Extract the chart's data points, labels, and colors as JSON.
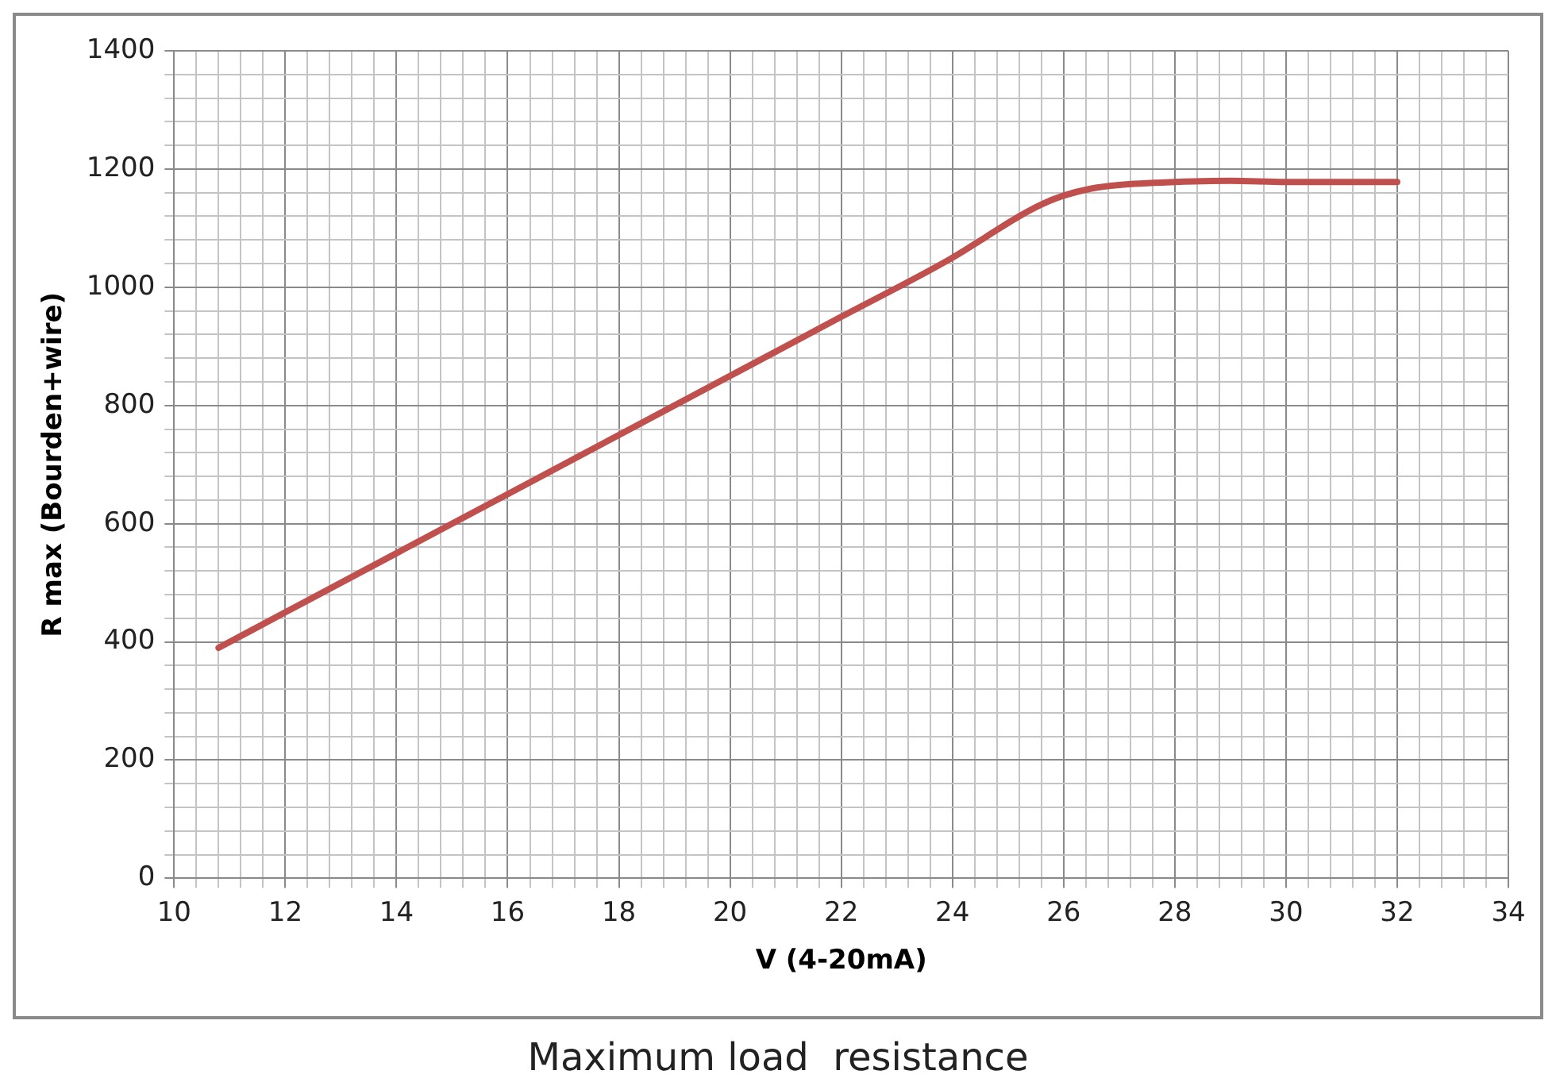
{
  "chart_data": {
    "type": "line",
    "xlabel": "V (4-20mA)",
    "ylabel": "R max (Bourden+wire)",
    "annotations": [
      "Maximum load  resistance"
    ],
    "x": [
      10.8,
      12,
      14,
      16,
      18,
      20,
      22,
      24,
      24.6,
      25.2,
      25.6,
      26,
      26.5,
      27,
      28,
      29,
      30,
      31,
      32
    ],
    "series": [
      {
        "color": "#c0504d",
        "values": [
          390,
          450,
          550,
          650,
          750,
          850,
          950,
          1050,
          1085,
          1120,
          1140,
          1155,
          1167,
          1173,
          1178,
          1180,
          1178,
          1178,
          1178
        ]
      }
    ],
    "xlim": [
      10,
      34
    ],
    "ylim": [
      0,
      1400
    ],
    "xticks": [
      10,
      {
        "value": 10.4,
        "label": null
      },
      {
        "value": 10.8,
        "label": null
      },
      {
        "value": 11.2,
        "label": null
      },
      {
        "value": 11.6,
        "label": null
      },
      12,
      {
        "value": 12.4,
        "label": null
      },
      {
        "value": 12.8,
        "label": null
      },
      {
        "value": 13.2,
        "label": null
      },
      {
        "value": 13.6,
        "label": null
      },
      14,
      {
        "value": 14.4,
        "label": null
      },
      {
        "value": 14.8,
        "label": null
      },
      {
        "value": 15.2,
        "label": null
      },
      {
        "value": 15.6,
        "label": null
      },
      16,
      {
        "value": 16.4,
        "label": null
      },
      {
        "value": 16.8,
        "label": null
      },
      {
        "value": 17.2,
        "label": null
      },
      {
        "value": 17.6,
        "label": null
      },
      18,
      {
        "value": 18.4,
        "label": null
      },
      {
        "value": 18.8,
        "label": null
      },
      {
        "value": 19.2,
        "label": null
      },
      {
        "value": 19.6,
        "label": null
      },
      20,
      {
        "value": 20.4,
        "label": null
      },
      {
        "value": 20.8,
        "label": null
      },
      {
        "value": 21.2,
        "label": null
      },
      {
        "value": 21.6,
        "label": null
      },
      22,
      {
        "value": 22.4,
        "label": null
      },
      {
        "value": 22.8,
        "label": null
      },
      {
        "value": 23.2,
        "label": null
      },
      {
        "value": 23.6,
        "label": null
      },
      24,
      {
        "value": 24.4,
        "label": null
      },
      {
        "value": 24.8,
        "label": null
      },
      {
        "value": 25.2,
        "label": null
      },
      {
        "value": 25.6,
        "label": null
      },
      26,
      {
        "value": 26.4,
        "label": null
      },
      {
        "value": 26.8,
        "label": null
      },
      {
        "value": 27.2,
        "label": null
      },
      {
        "value": 27.6,
        "label": null
      },
      28,
      {
        "value": 28.4,
        "label": null
      },
      {
        "value": 28.8,
        "label": null
      },
      {
        "value": 29.2,
        "label": null
      },
      {
        "value": 29.6,
        "label": null
      },
      30,
      {
        "value": 30.4,
        "label": null
      },
      {
        "value": 30.8,
        "label": null
      },
      {
        "value": 31.2,
        "label": null
      },
      {
        "value": 31.6,
        "label": null
      },
      32,
      {
        "value": 32.4,
        "label": null
      },
      {
        "value": 32.8,
        "label": null
      },
      {
        "value": 33.2,
        "label": null
      },
      {
        "value": 33.6,
        "label": null
      },
      34
    ],
    "yticks": [
      0,
      {
        "value": 40,
        "label": null
      },
      {
        "value": 80,
        "label": null
      },
      {
        "value": 120,
        "label": null
      },
      {
        "value": 160,
        "label": null
      },
      200,
      {
        "value": 240,
        "label": null
      },
      {
        "value": 280,
        "label": null
      },
      {
        "value": 320,
        "label": null
      },
      {
        "value": 360,
        "label": null
      },
      400,
      {
        "value": 440,
        "label": null
      },
      {
        "value": 480,
        "label": null
      },
      {
        "value": 520,
        "label": null
      },
      {
        "value": 560,
        "label": null
      },
      600,
      {
        "value": 640,
        "label": null
      },
      {
        "value": 680,
        "label": null
      },
      {
        "value": 720,
        "label": null
      },
      {
        "value": 760,
        "label": null
      },
      800,
      {
        "value": 840,
        "label": null
      },
      {
        "value": 880,
        "label": null
      },
      {
        "value": 920,
        "label": null
      },
      {
        "value": 960,
        "label": null
      },
      1000,
      {
        "value": 1040,
        "label": null
      },
      {
        "value": 1080,
        "label": null
      },
      {
        "value": 1120,
        "label": null
      },
      {
        "value": 1160,
        "label": null
      },
      1200,
      {
        "value": 1240,
        "label": null
      },
      {
        "value": 1280,
        "label": null
      },
      {
        "value": 1320,
        "label": null
      },
      {
        "value": 1360,
        "label": null
      },
      1400
    ],
    "grid": true,
    "marker": "none",
    "line_style": "solid",
    "legend": false
  }
}
